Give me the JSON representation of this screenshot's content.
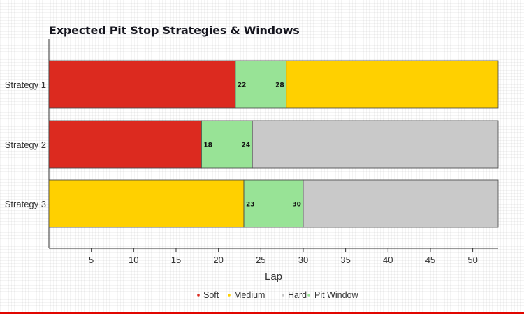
{
  "chart_data": {
    "type": "bar",
    "orientation": "horizontal",
    "stacked": true,
    "title": "Expected Pit Stop Strategies & Windows",
    "xlabel": "Lap",
    "ylabel": "",
    "xlim": [
      0,
      53
    ],
    "xticks": [
      5,
      10,
      15,
      20,
      25,
      30,
      35,
      40,
      45,
      50
    ],
    "grid": false,
    "legend_position": "bottom-center",
    "categories": [
      "Strategy 1",
      "Strategy 2",
      "Strategy 3"
    ],
    "legend": [
      {
        "name": "Soft",
        "color": "#dc2a1f"
      },
      {
        "name": "Medium",
        "color": "#ffd000"
      },
      {
        "name": "Hard",
        "color": "#c9c9c9"
      },
      {
        "name": "Pit Window",
        "color": "#98e396"
      }
    ],
    "strategies": [
      {
        "name": "Strategy 1",
        "segments": [
          {
            "compound": "Soft",
            "start": 0,
            "end": 22
          },
          {
            "compound": "Pit Window",
            "start": 22,
            "end": 28
          },
          {
            "compound": "Medium",
            "start": 28,
            "end": 53
          }
        ],
        "window_labels": [
          "22",
          "28"
        ]
      },
      {
        "name": "Strategy 2",
        "segments": [
          {
            "compound": "Soft",
            "start": 0,
            "end": 18
          },
          {
            "compound": "Pit Window",
            "start": 18,
            "end": 24
          },
          {
            "compound": "Hard",
            "start": 24,
            "end": 53
          }
        ],
        "window_labels": [
          "18",
          "24"
        ]
      },
      {
        "name": "Strategy 3",
        "segments": [
          {
            "compound": "Medium",
            "start": 0,
            "end": 23
          },
          {
            "compound": "Pit Window",
            "start": 23,
            "end": 30
          },
          {
            "compound": "Hard",
            "start": 30,
            "end": 53
          }
        ],
        "window_labels": [
          "23",
          "30"
        ]
      }
    ]
  }
}
